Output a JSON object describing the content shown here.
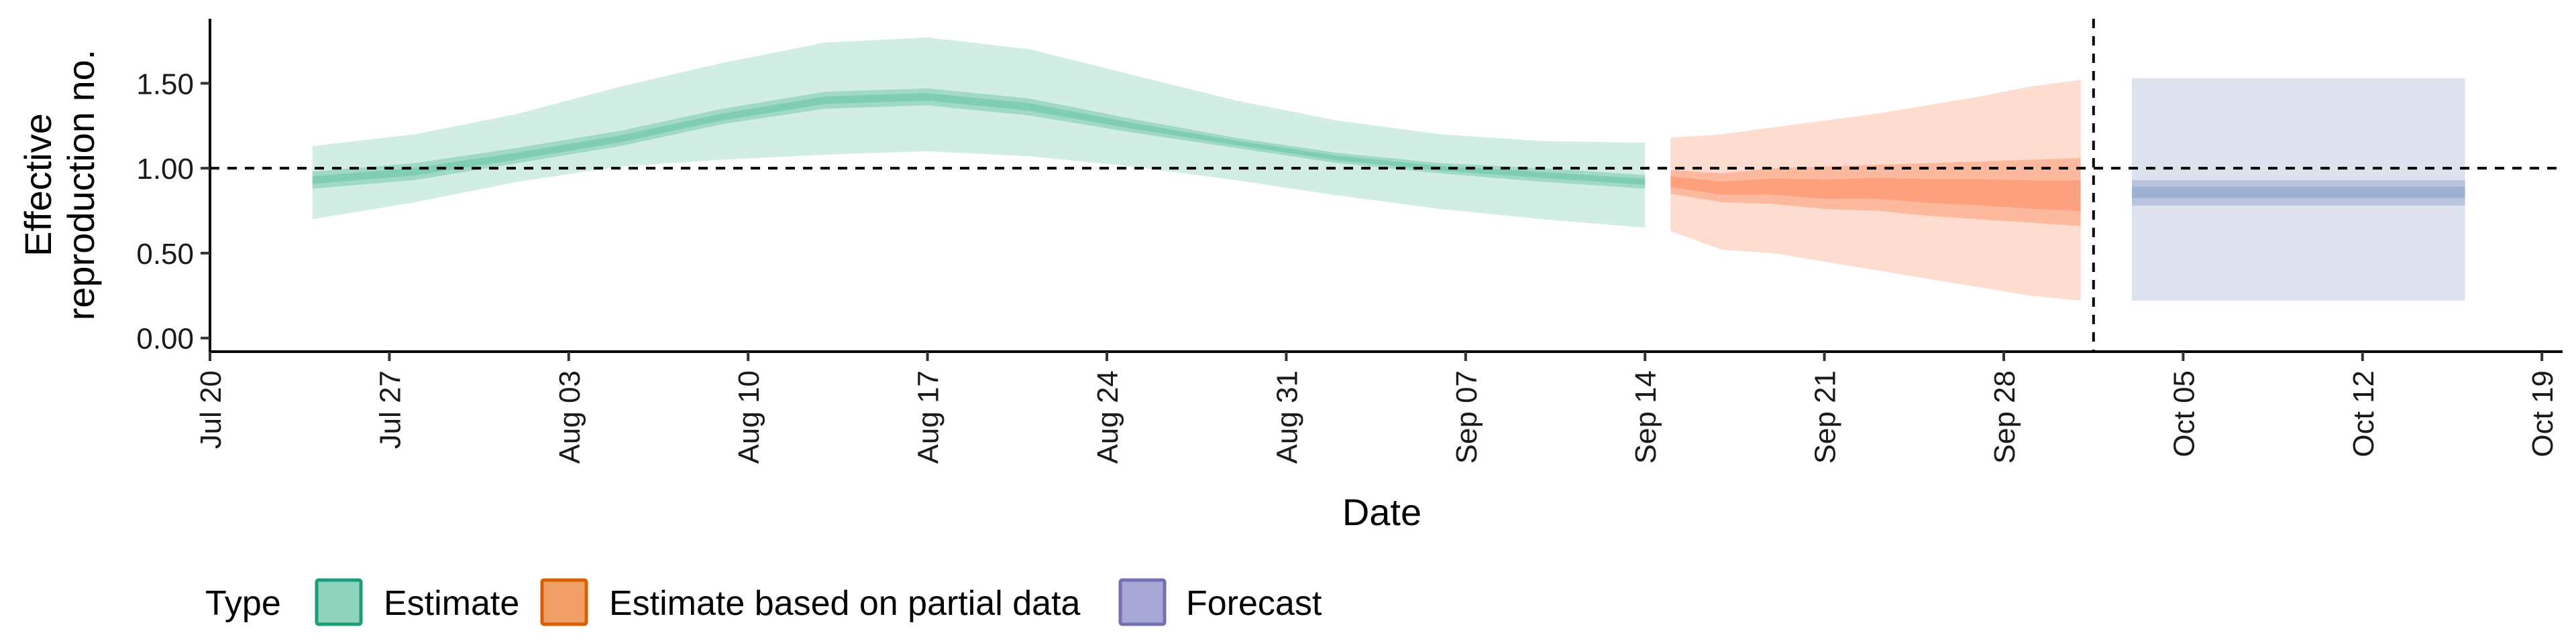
{
  "chart_data": {
    "type": "area",
    "xlabel": "Date",
    "ylabel_lines": [
      "Effective",
      "reproduction no."
    ],
    "x_ticks": [
      "Jul 20",
      "Jul 27",
      "Aug 03",
      "Aug 10",
      "Aug 17",
      "Aug 24",
      "Aug 31",
      "Sep 07",
      "Sep 14",
      "Sep 21",
      "Sep 28",
      "Oct 05",
      "Oct 12",
      "Oct 19"
    ],
    "y_ticks": [
      "0.00",
      "0.50",
      "1.00",
      "1.50"
    ],
    "ylim": [
      -0.08,
      1.88
    ],
    "reference_line_y": 1.0,
    "vertical_reference_date": "2020-10-02",
    "legend": {
      "title": "Type",
      "position": "bottom",
      "entries": [
        "Estimate",
        "Estimate based on partial data",
        "Forecast"
      ]
    },
    "colors": {
      "Estimate": "#1b9e77",
      "Estimate based on partial data": "#d95f02",
      "Forecast": "#7570b3",
      "Estimate_fill": "#66c2a5",
      "Estimate based on partial data_fill": "#fc8d62",
      "Forecast_fill": "#8da0cb"
    },
    "series": [
      {
        "name": "Estimate",
        "start": "2020-07-24",
        "end": "2020-09-14",
        "x": [
          0,
          4,
          8,
          12,
          16,
          20,
          24,
          28,
          32,
          36,
          40,
          44,
          48,
          52
        ],
        "median": [
          0.93,
          0.98,
          1.07,
          1.17,
          1.3,
          1.4,
          1.42,
          1.36,
          1.25,
          1.15,
          1.06,
          1.0,
          0.96,
          0.92
        ],
        "q25": [
          0.88,
          0.93,
          1.03,
          1.13,
          1.26,
          1.35,
          1.37,
          1.31,
          1.21,
          1.12,
          1.03,
          0.97,
          0.92,
          0.88
        ],
        "q75": [
          0.98,
          1.03,
          1.12,
          1.22,
          1.35,
          1.45,
          1.47,
          1.41,
          1.29,
          1.18,
          1.09,
          1.03,
          1.0,
          0.96
        ],
        "q05": [
          0.7,
          0.8,
          0.92,
          1.01,
          1.05,
          1.08,
          1.1,
          1.07,
          1.01,
          0.93,
          0.84,
          0.76,
          0.7,
          0.65
        ],
        "q95": [
          1.13,
          1.2,
          1.32,
          1.48,
          1.62,
          1.74,
          1.77,
          1.7,
          1.55,
          1.4,
          1.28,
          1.2,
          1.16,
          1.15
        ]
      },
      {
        "name": "Estimate based on partial data",
        "start": "2020-09-15",
        "end": "2020-10-01",
        "x": [
          0,
          2,
          4,
          6,
          8,
          10,
          12,
          14,
          16
        ],
        "median": [
          0.92,
          0.88,
          0.89,
          0.87,
          0.88,
          0.86,
          0.85,
          0.83,
          0.82
        ],
        "q25": [
          0.85,
          0.8,
          0.79,
          0.76,
          0.75,
          0.72,
          0.7,
          0.68,
          0.66
        ],
        "q75": [
          0.99,
          0.97,
          1.0,
          1.01,
          1.02,
          1.03,
          1.04,
          1.05,
          1.06
        ],
        "q05": [
          0.63,
          0.52,
          0.5,
          0.45,
          0.4,
          0.35,
          0.3,
          0.25,
          0.22
        ],
        "q95": [
          1.18,
          1.2,
          1.24,
          1.28,
          1.32,
          1.37,
          1.42,
          1.48,
          1.52
        ]
      },
      {
        "name": "Forecast",
        "start": "2020-10-03",
        "end": "2020-10-16",
        "x": [
          0,
          13
        ],
        "median": [
          0.86,
          0.86
        ],
        "q25": [
          0.78,
          0.78
        ],
        "q75": [
          0.93,
          0.93
        ],
        "q05": [
          0.22,
          0.22
        ],
        "q95": [
          1.53,
          1.53
        ]
      }
    ]
  }
}
